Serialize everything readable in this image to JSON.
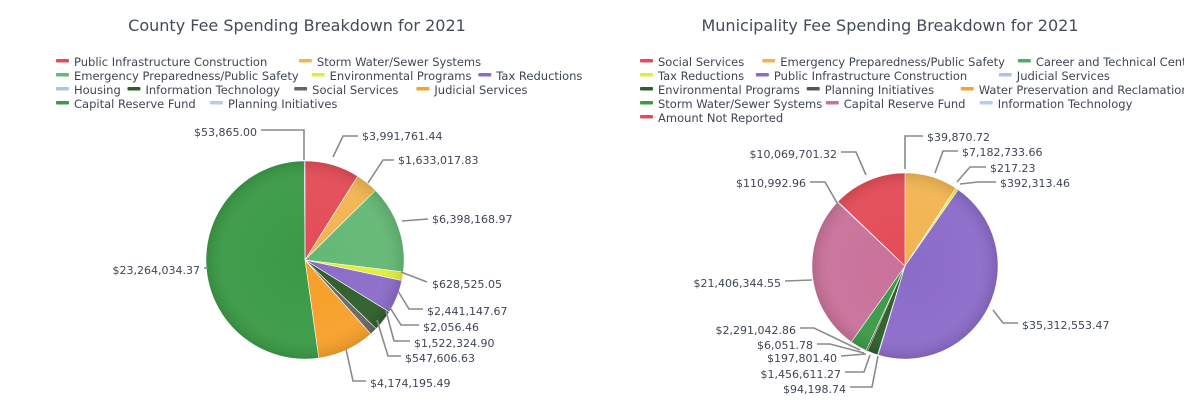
{
  "colors": {
    "red": "#e34c56",
    "orange_light": "#f2b451",
    "green": "#4caf63",
    "yellow": "#e6ea3e",
    "purple": "#8b6bc9",
    "light_blue": "#a9c5e6",
    "dark_green": "#2e5e2a",
    "dark_gray": "#555555",
    "orange": "#f7a02a",
    "green2": "#3a9a46",
    "pink": "#c9719a"
  },
  "chart_data": [
    {
      "type": "pie",
      "title": "County Fee Spending Breakdown for 2021",
      "legend_position": "top",
      "slices": [
        {
          "name": "Public Infrastructure Construction",
          "value": 3991761.44,
          "label": "$3,991,761.44",
          "color": "#e34c56"
        },
        {
          "name": "Storm Water/Sewer Systems",
          "value": 1633017.83,
          "label": "$1,633,017.83",
          "color": "#f2b451"
        },
        {
          "name": "Emergency Preparedness/Public Safety",
          "value": 6398168.97,
          "label": "$6,398,168.97",
          "color": "#63b874"
        },
        {
          "name": "Environmental Programs",
          "value": 628525.05,
          "label": "$628,525.05",
          "color": "#e3ec3c"
        },
        {
          "name": "Tax Reductions",
          "value": 2441147.67,
          "label": "$2,441,147.67",
          "color": "#8b6bc9"
        },
        {
          "name": "Housing",
          "value": 2056.46,
          "label": "$2,056.46",
          "color": "#a9c5e6"
        },
        {
          "name": "Information Technology",
          "value": 1522324.9,
          "label": "$1,522,324.90",
          "color": "#2e5e2a"
        },
        {
          "name": "Social Services",
          "value": 547606.63,
          "label": "$547,606.63",
          "color": "#666666"
        },
        {
          "name": "Judicial Services",
          "value": 4174195.49,
          "label": "$4,174,195.49",
          "color": "#f7a02a"
        },
        {
          "name": "Capital Reserve Fund",
          "value": 23264034.37,
          "label": "$23,264,034.37",
          "color": "#3a9a46"
        },
        {
          "name": "Planning Initiatives",
          "value": 53865.0,
          "label": "$53,865.00",
          "color": "#b5cde8"
        }
      ]
    },
    {
      "type": "pie",
      "title": "Municipality Fee Spending Breakdown for 2021",
      "legend_position": "top",
      "slices": [
        {
          "name": "Social Services",
          "value": 39870.72,
          "label": "$39,870.72",
          "color": "#e34c56"
        },
        {
          "name": "Emergency Preparedness/Public Safety",
          "value": 7182733.66,
          "label": "$7,182,733.66",
          "color": "#f2b451"
        },
        {
          "name": "Career and Technical Centers",
          "value": 217.23,
          "label": "$217.23",
          "color": "#4caf63"
        },
        {
          "name": "Tax Reductions",
          "value": 392313.46,
          "label": "$392,313.46",
          "color": "#e3ec3c"
        },
        {
          "name": "Public Infrastructure Construction",
          "value": 35312553.47,
          "label": "$35,312,553.47",
          "color": "#8b6bc9"
        },
        {
          "name": "Judicial Services",
          "value": 94198.74,
          "label": "$94,198.74",
          "color": "#a9c5e6"
        },
        {
          "name": "Environmental Programs",
          "value": 1456611.27,
          "label": "$1,456,611.27",
          "color": "#2e5e2a"
        },
        {
          "name": "Planning Initiatives",
          "value": 197801.4,
          "label": "$197,801.40",
          "color": "#555555"
        },
        {
          "name": "Water Preservation and Reclamation",
          "value": 6051.78,
          "label": "$6,051.78",
          "color": "#f7a02a"
        },
        {
          "name": "Storm Water/Sewer Systems",
          "value": 2291042.86,
          "label": "$2,291,042.86",
          "color": "#3a9a46"
        },
        {
          "name": "Capital Reserve Fund",
          "value": 21406344.55,
          "label": "$21,406,344.55",
          "color": "#c9719a"
        },
        {
          "name": "Information Technology",
          "value": 110992.96,
          "label": "$110,992.96",
          "color": "#b5cde8"
        },
        {
          "name": "Amount Not Reported",
          "value": 10069701.32,
          "label": "$10,069,701.32",
          "color": "#e34c56"
        }
      ]
    }
  ]
}
